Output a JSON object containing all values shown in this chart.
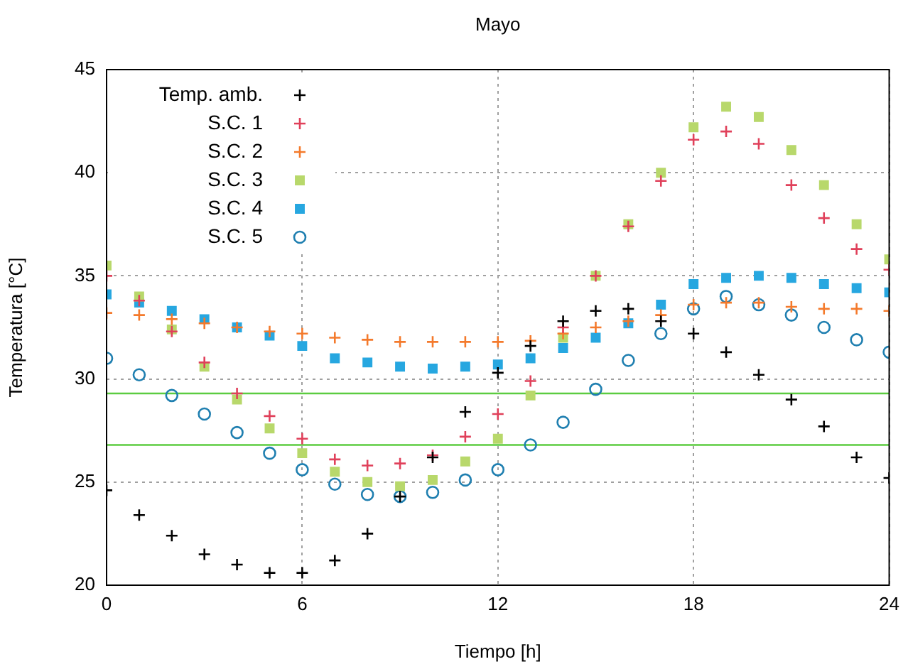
{
  "chart_data": {
    "type": "scatter",
    "title": "Mayo",
    "xlabel": "Tiempo [h]",
    "ylabel": "Temperatura [°C]",
    "x": [
      0,
      1,
      2,
      3,
      4,
      5,
      6,
      7,
      8,
      9,
      10,
      11,
      12,
      13,
      14,
      15,
      16,
      17,
      18,
      19,
      20,
      21,
      22,
      23,
      24
    ],
    "xlim": [
      0,
      24
    ],
    "xticks": [
      0,
      6,
      12,
      18,
      24
    ],
    "ylim": [
      20,
      45
    ],
    "yticks": [
      20,
      25,
      30,
      35,
      40,
      45
    ],
    "grid": true,
    "legend": "top left",
    "series": [
      {
        "name": "Temp. amb.",
        "color": "#000000",
        "marker": "cross",
        "values": [
          24.6,
          23.4,
          22.4,
          21.5,
          21.0,
          20.6,
          20.6,
          21.2,
          22.5,
          24.3,
          26.2,
          28.4,
          30.3,
          31.6,
          32.8,
          33.3,
          33.4,
          32.8,
          32.2,
          31.3,
          30.2,
          29.0,
          27.7,
          26.2,
          25.2
        ]
      },
      {
        "name": "S.C. 1",
        "color": "#e0405a",
        "marker": "cross",
        "values": [
          35.0,
          33.8,
          32.3,
          30.8,
          29.3,
          28.2,
          27.1,
          26.1,
          25.8,
          25.9,
          26.3,
          27.2,
          28.3,
          29.9,
          32.5,
          35.0,
          37.4,
          39.6,
          41.6,
          42.0,
          41.4,
          39.4,
          37.8,
          36.3,
          35.3
        ]
      },
      {
        "name": "S.C. 2",
        "color": "#f47a2c",
        "marker": "cross",
        "values": [
          33.2,
          33.1,
          32.9,
          32.7,
          32.5,
          32.3,
          32.2,
          32.0,
          31.9,
          31.8,
          31.8,
          31.8,
          31.8,
          31.85,
          32.2,
          32.5,
          32.8,
          33.1,
          33.6,
          33.7,
          33.7,
          33.5,
          33.4,
          33.4,
          33.3
        ]
      },
      {
        "name": "S.C. 3",
        "color": "#b8d86b",
        "marker": "square",
        "values": [
          35.5,
          34.0,
          32.4,
          30.6,
          29.0,
          27.6,
          26.4,
          25.5,
          25.0,
          24.8,
          25.1,
          26.0,
          27.1,
          29.2,
          32.0,
          35.0,
          37.5,
          40.0,
          42.2,
          43.2,
          42.7,
          41.1,
          39.4,
          37.5,
          35.8
        ]
      },
      {
        "name": "S.C. 4",
        "color": "#27a7e0",
        "marker": "square",
        "values": [
          34.1,
          33.7,
          33.3,
          32.9,
          32.5,
          32.1,
          31.6,
          31.0,
          30.8,
          30.6,
          30.5,
          30.6,
          30.7,
          31.0,
          31.5,
          32.0,
          32.7,
          33.6,
          34.6,
          34.9,
          35.0,
          34.9,
          34.6,
          34.4,
          34.2
        ]
      },
      {
        "name": "S.C. 5",
        "color": "#1f7fb0",
        "marker": "circle",
        "values": [
          31.0,
          30.2,
          29.2,
          28.3,
          27.4,
          26.4,
          25.6,
          24.9,
          24.4,
          24.3,
          24.5,
          25.1,
          25.6,
          26.8,
          27.9,
          29.5,
          30.9,
          32.2,
          33.4,
          34.0,
          33.6,
          33.1,
          32.5,
          31.9,
          31.3
        ]
      }
    ],
    "ref_lines": [
      {
        "axis": "y",
        "value": 29.3,
        "color": "#5ccc40"
      },
      {
        "axis": "y",
        "value": 26.8,
        "color": "#5ccc40"
      }
    ]
  }
}
